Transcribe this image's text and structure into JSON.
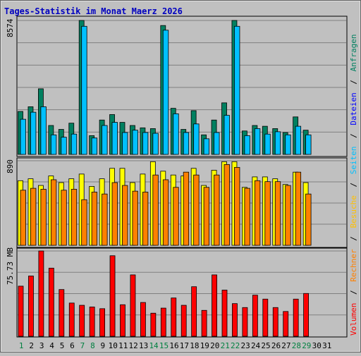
{
  "title": "Tages-Statistik im Monat Maerz 2026",
  "colors": {
    "background": "#c0c0c0",
    "title": "#0000c0",
    "grid": "#808080",
    "anfragen": "#008060",
    "dateien": "#0000ff",
    "seiten": "#00c0ff",
    "besuche": "#ffff00",
    "rechner": "#ff8000",
    "volumen": "#ff0000",
    "weekend_label": "#008040",
    "weekday_label": "#000000"
  },
  "panels": {
    "top_max_label": "8574",
    "middle_max_label": "890",
    "bottom_max_label": "75.73 MB"
  },
  "legend": {
    "anfragen": "Anfragen",
    "dateien": "Dateien",
    "seiten": "Seiten",
    "besuche": "Besuche",
    "rechner": "Rechner",
    "volumen": "Volumen",
    "separator": "/"
  },
  "chart_data": {
    "type": "bar",
    "title": "Tages-Statistik im Monat Maerz 2026",
    "categories": [
      "1",
      "2",
      "3",
      "4",
      "5",
      "6",
      "7",
      "8",
      "9",
      "10",
      "11",
      "12",
      "13",
      "14",
      "15",
      "16",
      "17",
      "18",
      "19",
      "20",
      "21",
      "22",
      "23",
      "24",
      "25",
      "26",
      "27",
      "28",
      "29",
      "30",
      "31"
    ],
    "weekend_days": [
      "1",
      "7",
      "8",
      "14",
      "15",
      "21",
      "22",
      "28",
      "29"
    ],
    "panels": [
      {
        "name": "top",
        "max_label": "8574",
        "ylim": [
          0,
          8574
        ],
        "series": [
          {
            "name": "Anfragen",
            "values": [
              2750,
              3050,
              4200,
              1850,
              1600,
              2000,
              8574,
              1200,
              2200,
              2550,
              2050,
              1850,
              1700,
              1650,
              8250,
              2950,
              1600,
              2800,
              1250,
              2200,
              3300,
              8574,
              1500,
              1850,
              1800,
              1650,
              1400,
              2400,
              1550,
              0,
              0
            ]
          },
          {
            "name": "Seiten",
            "values": [
              2250,
              2700,
              3050,
              1250,
              1100,
              1300,
              8200,
              1050,
              1850,
              2050,
              1400,
              1550,
              1400,
              1350,
              7950,
              2600,
              1400,
              1950,
              1000,
              1400,
              2500,
              8200,
              1200,
              1650,
              1300,
              1450,
              1250,
              1800,
              1250,
              0,
              0
            ]
          }
        ]
      },
      {
        "name": "middle",
        "max_label": "890",
        "ylim": [
          0,
          890
        ],
        "series": [
          {
            "name": "Besuche",
            "values": [
              680,
              700,
              630,
              730,
              660,
              700,
              750,
              620,
              700,
              810,
              810,
              660,
              750,
              880,
              780,
              740,
              730,
              810,
              630,
              790,
              880,
              880,
              610,
              720,
              720,
              700,
              640,
              770,
              660,
              0,
              0
            ]
          },
          {
            "name": "Rechner",
            "values": [
              580,
              600,
              590,
              690,
              580,
              590,
              480,
              560,
              540,
              660,
              630,
              570,
              560,
              740,
              690,
              610,
              770,
              740,
              610,
              740,
              850,
              820,
              600,
              680,
              670,
              670,
              630,
              770,
              540,
              0,
              0
            ]
          }
        ]
      },
      {
        "name": "bottom",
        "max_label": "75.73 MB",
        "ylim": [
          0,
          75.73
        ],
        "series": [
          {
            "name": "Volumen",
            "values": [
              44.5,
              53.5,
              75.73,
              60.5,
              41.5,
              29.5,
              27.5,
              26.0,
              24.5,
              71.5,
              28.0,
              54.5,
              30.0,
              20.5,
              25.0,
              34.0,
              27.5,
              44.0,
              23.0,
              54.5,
              41.0,
              29.0,
              25.5,
              36.5,
              33.0,
              25.5,
              22.0,
              33.0,
              38.0,
              0,
              0
            ]
          }
        ]
      }
    ]
  }
}
